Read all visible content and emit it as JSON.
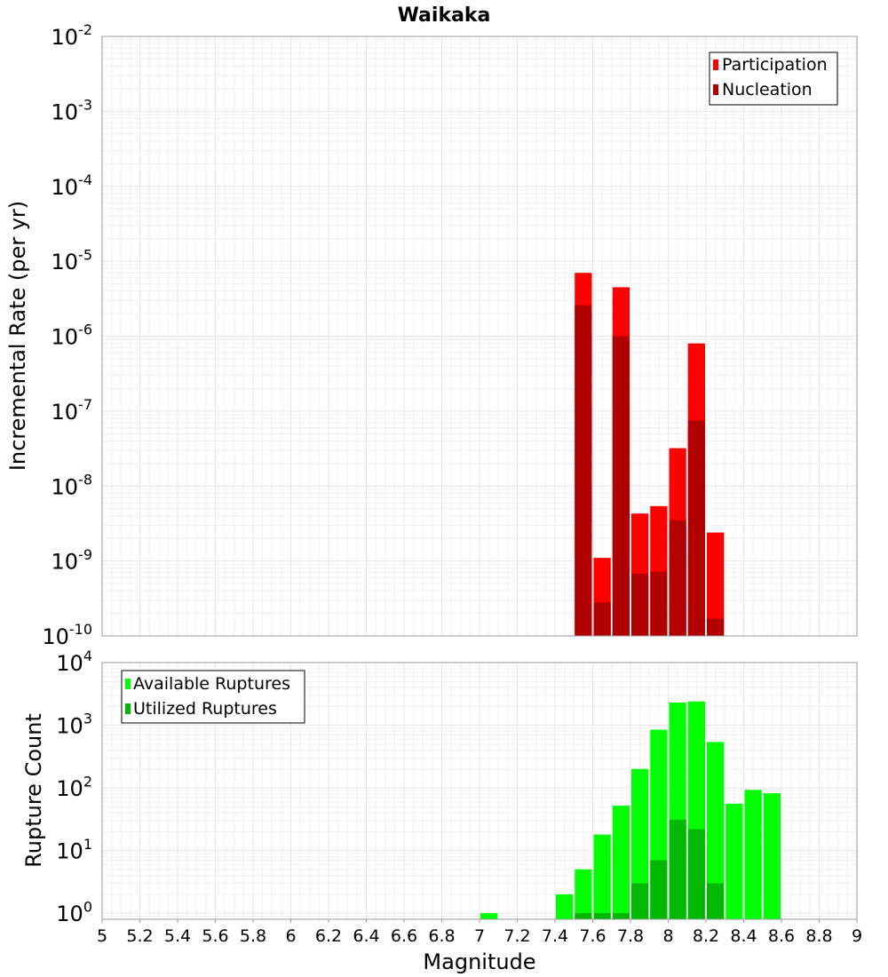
{
  "chart_data": [
    {
      "type": "bar",
      "title": "Waikaka",
      "ylabel": "Incremental Rate (per yr)",
      "xlabel": "",
      "yscale": "log",
      "ylim": [
        1e-10,
        0.01
      ],
      "xlim": [
        5,
        9
      ],
      "bar_width": 0.1,
      "legend_placement": "top-right",
      "grid": true,
      "x": [
        7.55,
        7.65,
        7.75,
        7.85,
        7.95,
        8.05,
        8.15,
        8.25
      ],
      "series": [
        {
          "name": "Participation",
          "color": "#ff0000",
          "values": [
            7e-06,
            1.1e-09,
            4.5e-06,
            4.3e-09,
            5.4e-09,
            3.2e-08,
            8e-07,
            2.4e-09
          ]
        },
        {
          "name": "Nucleation",
          "color": "#b00000",
          "values": [
            2.6e-06,
            2.8e-10,
            1e-06,
            6.8e-10,
            7.2e-10,
            3.5e-09,
            7.5e-08,
            1.7e-10
          ]
        }
      ]
    },
    {
      "type": "bar",
      "title": "",
      "ylabel": "Rupture Count",
      "xlabel": "Magnitude",
      "yscale": "log",
      "ylim": [
        0.8,
        10000
      ],
      "xlim": [
        5,
        9
      ],
      "bar_width": 0.1,
      "legend_placement": "top-left",
      "grid": true,
      "x": [
        7.05,
        7.45,
        7.55,
        7.65,
        7.75,
        7.85,
        7.95,
        8.05,
        8.15,
        8.25,
        8.35,
        8.45,
        8.55
      ],
      "series": [
        {
          "name": "Available Ruptures",
          "color": "#00ff00",
          "values": [
            1,
            2,
            5,
            18,
            52,
            200,
            850,
            2300,
            2400,
            540,
            56,
            93,
            82
          ]
        },
        {
          "name": "Utilized Ruptures",
          "color": "#00b800",
          "values": [
            null,
            null,
            1,
            1,
            1,
            3,
            7,
            31,
            22,
            3,
            null,
            null,
            null
          ]
        }
      ]
    }
  ],
  "xticks": [
    "5",
    "5.2",
    "5.4",
    "5.6",
    "5.8",
    "6",
    "6.2",
    "6.4",
    "6.6",
    "6.8",
    "7",
    "7.2",
    "7.4",
    "7.6",
    "7.8",
    "8",
    "8.2",
    "8.4",
    "8.6",
    "8.8",
    "9"
  ],
  "top_yticks": [
    {
      "base": "10",
      "exp": "-2"
    },
    {
      "base": "10",
      "exp": "-3"
    },
    {
      "base": "10",
      "exp": "-4"
    },
    {
      "base": "10",
      "exp": "-5"
    },
    {
      "base": "10",
      "exp": "-6"
    },
    {
      "base": "10",
      "exp": "-7"
    },
    {
      "base": "10",
      "exp": "-8"
    },
    {
      "base": "10",
      "exp": "-9"
    },
    {
      "base": "10",
      "exp": "-10"
    }
  ],
  "bottom_yticks": [
    {
      "base": "10",
      "exp": "4"
    },
    {
      "base": "10",
      "exp": "3"
    },
    {
      "base": "10",
      "exp": "2"
    },
    {
      "base": "10",
      "exp": "1"
    },
    {
      "base": "10",
      "exp": "0"
    }
  ]
}
